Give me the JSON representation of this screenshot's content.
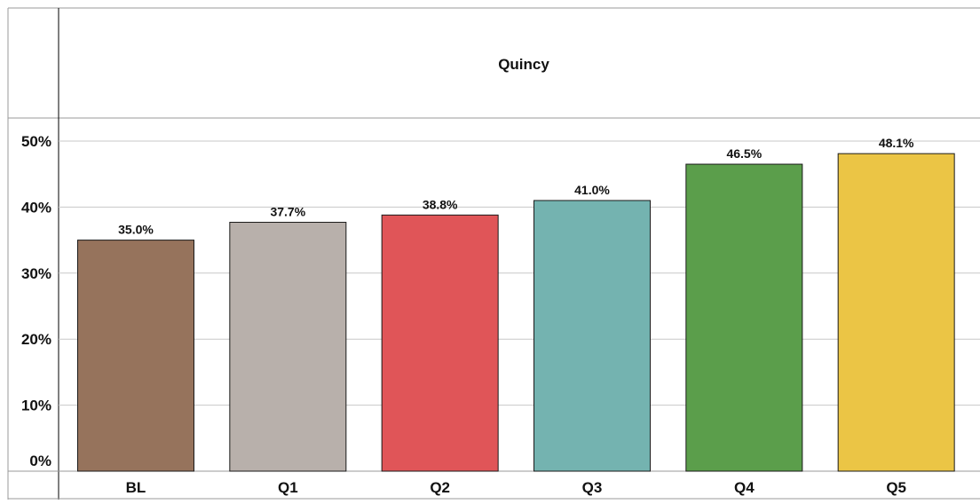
{
  "chart_data": {
    "type": "bar",
    "title": "Quincy",
    "categories": [
      "BL",
      "Q1",
      "Q2",
      "Q3",
      "Q4",
      "Q5"
    ],
    "values": [
      35.0,
      37.7,
      38.8,
      41.0,
      46.5,
      48.1
    ],
    "data_labels": [
      "35.0%",
      "37.7%",
      "38.8%",
      "41.0%",
      "46.5%",
      "48.1%"
    ],
    "colors": [
      "#96735C",
      "#B8B0AB",
      "#E05558",
      "#74B3B0",
      "#5B9E4B",
      "#EBC545"
    ],
    "y_ticks": [
      {
        "value": 0,
        "label": "0%"
      },
      {
        "value": 10,
        "label": "10%"
      },
      {
        "value": 20,
        "label": "20%"
      },
      {
        "value": 30,
        "label": "30%"
      },
      {
        "value": 40,
        "label": "40%"
      },
      {
        "value": 50,
        "label": "50%"
      }
    ],
    "ylim": [
      0,
      50
    ],
    "grid": true,
    "legend": "none"
  }
}
